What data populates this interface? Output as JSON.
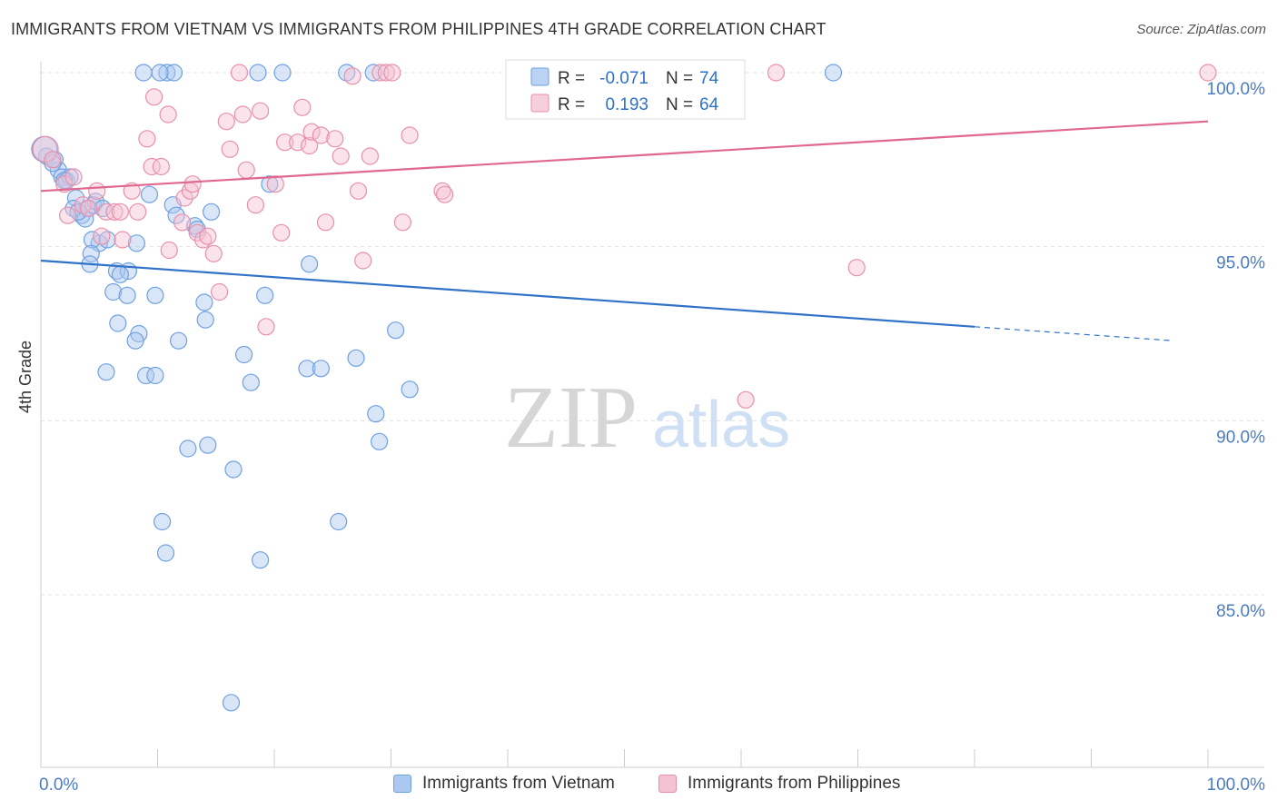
{
  "header": {
    "title": "IMMIGRANTS FROM VIETNAM VS IMMIGRANTS FROM PHILIPPINES 4TH GRADE CORRELATION CHART",
    "source": "Source: ZipAtlas.com"
  },
  "watermark": {
    "zip": "ZIP",
    "atlas": "atlas"
  },
  "legend": {
    "rows": [
      {
        "r_label": "R =",
        "r_value": "-0.071",
        "n_label": "N =",
        "n_value": "74"
      },
      {
        "r_label": "R =",
        "r_value": "0.193",
        "n_label": "N =",
        "n_value": "64"
      }
    ]
  },
  "chart_data": {
    "type": "scatter",
    "title": "IMMIGRANTS FROM VIETNAM VS IMMIGRANTS FROM PHILIPPINES 4TH GRADE CORRELATION CHART",
    "xlabel": "",
    "ylabel": "4th Grade",
    "xlim": [
      0,
      100
    ],
    "ylim": [
      80.5,
      100.8
    ],
    "x_tick_labels": [
      "0.0%",
      "100.0%"
    ],
    "y_ticks": [
      {
        "value": 100,
        "label": "100.0%"
      },
      {
        "value": 95,
        "label": "95.0%"
      },
      {
        "value": 90,
        "label": "90.0%"
      },
      {
        "value": 85,
        "label": "85.0%"
      }
    ],
    "grid": true,
    "legend_position": "top-center",
    "series": [
      {
        "name": "Immigrants from Vietnam",
        "color": "#6fa0e0",
        "fill": "#aac8f0",
        "line_color": "#2f72c8",
        "trend": {
          "x_start": 0,
          "y_start": 94.6,
          "x_solid_end": 80,
          "y_solid_end": 92.7,
          "x_end": 97,
          "y_end": 92.3
        },
        "points": [
          [
            0.5,
            97.6
          ],
          [
            1.2,
            97.5
          ],
          [
            1.5,
            97.2
          ],
          [
            1.8,
            97.0
          ],
          [
            2.2,
            96.9
          ],
          [
            2.5,
            97.0
          ],
          [
            3.0,
            96.4
          ],
          [
            3.5,
            95.9
          ],
          [
            4.0,
            96.1
          ],
          [
            4.5,
            96.2
          ],
          [
            3.8,
            95.8
          ],
          [
            2.8,
            96.1
          ],
          [
            4.7,
            96.3
          ],
          [
            5.0,
            95.1
          ],
          [
            4.4,
            95.2
          ],
          [
            5.7,
            95.2
          ],
          [
            8.2,
            95.1
          ],
          [
            4.3,
            94.8
          ],
          [
            4.2,
            94.5
          ],
          [
            6.5,
            94.3
          ],
          [
            7.5,
            94.3
          ],
          [
            6.8,
            94.2
          ],
          [
            6.2,
            93.7
          ],
          [
            7.4,
            93.6
          ],
          [
            9.8,
            93.6
          ],
          [
            6.6,
            92.8
          ],
          [
            8.4,
            92.5
          ],
          [
            8.1,
            92.3
          ],
          [
            11.8,
            92.3
          ],
          [
            5.6,
            91.4
          ],
          [
            9.0,
            91.3
          ],
          [
            9.8,
            91.3
          ],
          [
            9.3,
            96.5
          ],
          [
            11.3,
            96.2
          ],
          [
            11.6,
            95.9
          ],
          [
            14.6,
            96.0
          ],
          [
            13.2,
            95.6
          ],
          [
            13.4,
            95.5
          ],
          [
            14.0,
            93.4
          ],
          [
            14.1,
            92.9
          ],
          [
            17.4,
            91.9
          ],
          [
            18.0,
            91.1
          ],
          [
            19.2,
            93.6
          ],
          [
            19.6,
            96.8
          ],
          [
            23.0,
            94.5
          ],
          [
            22.8,
            91.5
          ],
          [
            24.0,
            91.5
          ],
          [
            27.0,
            91.8
          ],
          [
            28.7,
            90.2
          ],
          [
            29.0,
            89.4
          ],
          [
            30.4,
            92.6
          ],
          [
            31.6,
            90.9
          ],
          [
            12.6,
            89.2
          ],
          [
            14.3,
            89.3
          ],
          [
            16.5,
            88.6
          ],
          [
            10.4,
            87.1
          ],
          [
            10.7,
            86.2
          ],
          [
            25.5,
            87.1
          ],
          [
            18.8,
            86.0
          ],
          [
            16.3,
            81.9
          ],
          [
            8.8,
            100.0
          ],
          [
            10.8,
            100.0
          ],
          [
            11.4,
            100.0
          ],
          [
            18.6,
            100.0
          ],
          [
            20.7,
            100.0
          ],
          [
            26.2,
            100.0
          ],
          [
            28.5,
            100.0
          ],
          [
            67.9,
            100.0
          ],
          [
            10.2,
            100.0
          ],
          [
            0.3,
            97.8
          ],
          [
            1.0,
            97.4
          ],
          [
            2.0,
            96.9
          ],
          [
            3.2,
            96.0
          ],
          [
            5.3,
            96.1
          ]
        ]
      },
      {
        "name": "Immigrants from Philippines",
        "color": "#e890aa",
        "fill": "#f5c2d2",
        "line_color": "#e06890",
        "trend": {
          "x_start": 0,
          "y_start": 96.6,
          "x_end": 100,
          "y_end": 98.6
        },
        "points": [
          [
            0.4,
            97.8
          ],
          [
            1.0,
            97.5
          ],
          [
            2.0,
            96.8
          ],
          [
            2.8,
            97.0
          ],
          [
            3.6,
            96.2
          ],
          [
            2.3,
            95.9
          ],
          [
            4.1,
            96.1
          ],
          [
            4.8,
            96.6
          ],
          [
            5.6,
            96.0
          ],
          [
            6.3,
            96.0
          ],
          [
            6.8,
            96.0
          ],
          [
            7.8,
            96.6
          ],
          [
            8.3,
            96.0
          ],
          [
            5.2,
            95.3
          ],
          [
            7.0,
            95.2
          ],
          [
            9.1,
            98.1
          ],
          [
            9.5,
            97.3
          ],
          [
            10.3,
            97.3
          ],
          [
            9.7,
            99.3
          ],
          [
            10.9,
            98.8
          ],
          [
            11.0,
            94.9
          ],
          [
            12.1,
            95.7
          ],
          [
            12.3,
            96.4
          ],
          [
            12.8,
            96.6
          ],
          [
            13.0,
            96.8
          ],
          [
            13.4,
            95.4
          ],
          [
            13.9,
            95.2
          ],
          [
            14.3,
            95.3
          ],
          [
            14.8,
            94.8
          ],
          [
            15.3,
            93.7
          ],
          [
            16.2,
            97.8
          ],
          [
            15.9,
            98.6
          ],
          [
            17.3,
            98.8
          ],
          [
            17.6,
            97.2
          ],
          [
            18.4,
            96.2
          ],
          [
            18.8,
            98.9
          ],
          [
            19.3,
            92.7
          ],
          [
            20.1,
            96.8
          ],
          [
            20.6,
            95.4
          ],
          [
            20.9,
            98.0
          ],
          [
            22.0,
            98.0
          ],
          [
            22.4,
            99.0
          ],
          [
            23.0,
            97.9
          ],
          [
            23.2,
            98.3
          ],
          [
            24.0,
            98.2
          ],
          [
            24.4,
            95.7
          ],
          [
            25.2,
            98.1
          ],
          [
            25.7,
            97.6
          ],
          [
            27.2,
            96.6
          ],
          [
            27.6,
            94.6
          ],
          [
            28.2,
            97.6
          ],
          [
            29.1,
            100.0
          ],
          [
            29.6,
            100.0
          ],
          [
            30.1,
            100.0
          ],
          [
            31.0,
            95.7
          ],
          [
            31.6,
            98.2
          ],
          [
            34.4,
            96.6
          ],
          [
            34.6,
            96.5
          ],
          [
            17.0,
            100.0
          ],
          [
            26.7,
            99.9
          ],
          [
            60.4,
            90.6
          ],
          [
            69.9,
            94.4
          ],
          [
            63.0,
            100.0
          ],
          [
            100.0,
            100.0
          ]
        ]
      }
    ]
  }
}
